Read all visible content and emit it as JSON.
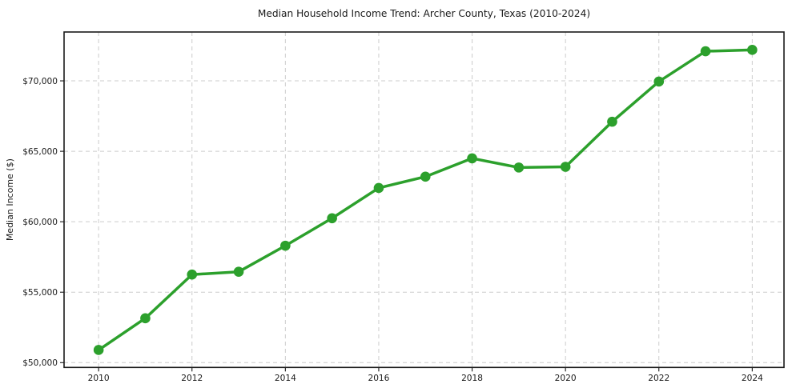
{
  "page": {
    "background": "#ffffff"
  },
  "chart_data": {
    "type": "line",
    "title": "Median Household Income Trend: Archer County, Texas (2010-2024)",
    "xlabel": "",
    "ylabel": "Median Income ($)",
    "x": [
      2010,
      2011,
      2012,
      2013,
      2014,
      2015,
      2016,
      2017,
      2018,
      2019,
      2020,
      2021,
      2022,
      2023,
      2024
    ],
    "series": [
      {
        "name": "Median Household Income",
        "values": [
          50900,
          53150,
          56250,
          56450,
          58300,
          60250,
          62400,
          63200,
          64500,
          63850,
          63900,
          67100,
          69950,
          72100,
          72200
        ],
        "color": "#2ca02c",
        "marker": "circle",
        "marker_radius": 6.3,
        "line_width": 3.5
      }
    ],
    "x_ticks": [
      2010,
      2012,
      2014,
      2016,
      2018,
      2020,
      2022,
      2024
    ],
    "x_tick_labels": [
      "2010",
      "2012",
      "2014",
      "2016",
      "2018",
      "2020",
      "2022",
      "2024"
    ],
    "y_ticks": [
      50000,
      55000,
      60000,
      65000,
      70000
    ],
    "y_tick_labels": [
      "$50,000",
      "$55,000",
      "$60,000",
      "$65,000",
      "$70,000"
    ],
    "xlim": [
      2009.26,
      2024.68
    ],
    "ylim": [
      49659,
      73467
    ],
    "grid": "both",
    "grid_style": "dashed",
    "grid_color": "#cccccc",
    "spine_color": "#1a1a1a",
    "legend": "none"
  }
}
